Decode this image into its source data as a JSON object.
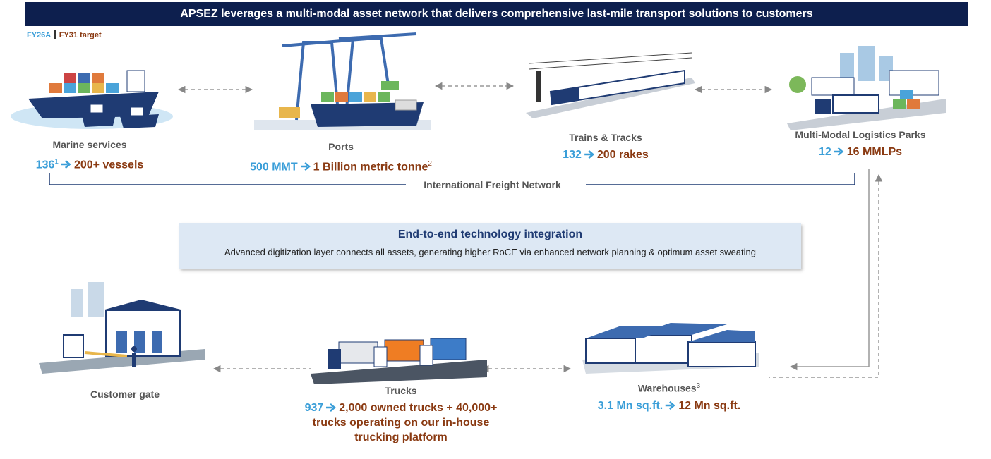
{
  "header": {
    "title": "APSEZ leverages a multi-modal asset network that delivers comprehensive last-mile transport solutions to customers"
  },
  "legend": {
    "actual": "FY26A",
    "target": "FY31 target"
  },
  "network_label": "International Freight Network",
  "technology": {
    "title": "End-to-end technology integration",
    "text": "Advanced digitization layer connects all assets, generating higher RoCE via enhanced network planning & optimum asset sweating"
  },
  "nodes": [
    {
      "label": "Marine services",
      "actual": "136",
      "actual_note": "1",
      "target": "200+ vessels"
    },
    {
      "label": "Ports",
      "actual": "500 MMT",
      "target": "1 Billion metric tonne",
      "target_note": "2"
    },
    {
      "label": "Trains & Tracks",
      "actual": "132",
      "target": "200 rakes"
    },
    {
      "label": "Multi-Modal Logistics Parks",
      "actual": "12",
      "target": "16 MMLPs"
    },
    {
      "label": "Customer gate"
    },
    {
      "label": "Trucks",
      "actual": "937",
      "target": "2,000 owned trucks + 40,000+ trucks operating on our in-house trucking platform"
    },
    {
      "label": "Warehouses",
      "label_note": "3",
      "actual": "3.1 Mn sq.ft.",
      "target": "12 Mn sq.ft."
    }
  ]
}
